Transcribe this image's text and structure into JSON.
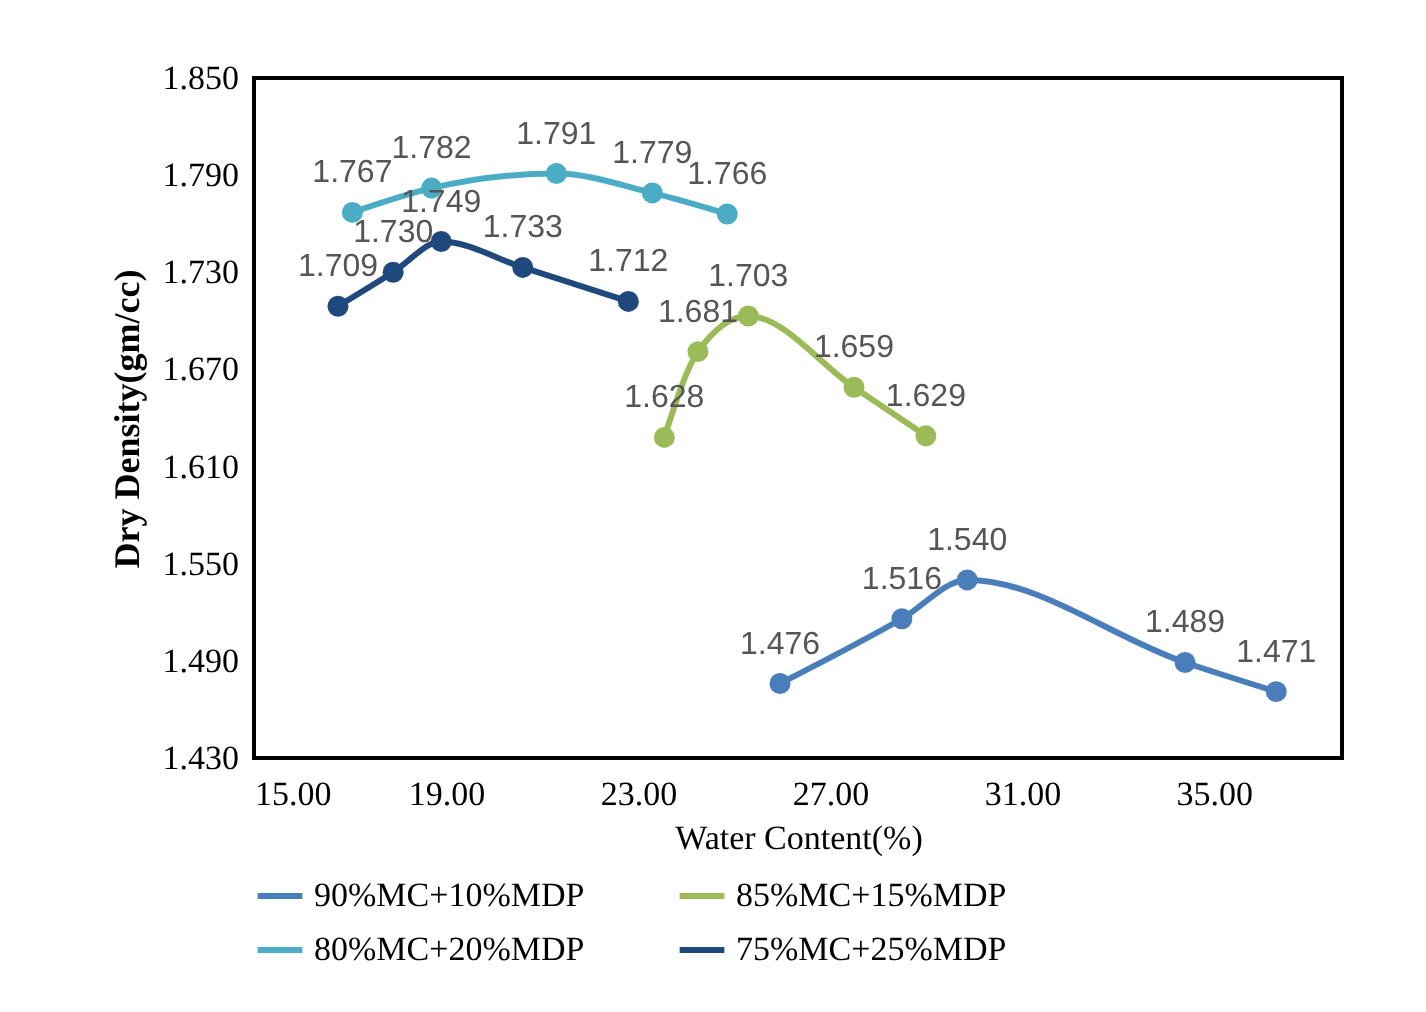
{
  "chart_data": {
    "type": "line",
    "xlabel": "Water Content(%)",
    "ylabel": "Dry Density(gm/cc)",
    "xlim": [
      15,
      37.67
    ],
    "xticks": [
      {
        "value": 15,
        "label": "15.00"
      },
      {
        "value": 19,
        "label": "19.00"
      },
      {
        "value": 23,
        "label": "23.00"
      },
      {
        "value": 27,
        "label": "27.00"
      },
      {
        "value": 31,
        "label": "31.00"
      },
      {
        "value": 35,
        "label": "35.00"
      }
    ],
    "ylim": [
      1.43,
      1.85
    ],
    "yticks": [
      {
        "value": 1.43,
        "label": "1.430"
      },
      {
        "value": 1.49,
        "label": "1.490"
      },
      {
        "value": 1.55,
        "label": "1.550"
      },
      {
        "value": 1.61,
        "label": "1.610"
      },
      {
        "value": 1.67,
        "label": "1.670"
      },
      {
        "value": 1.73,
        "label": "1.730"
      },
      {
        "value": 1.79,
        "label": "1.790"
      },
      {
        "value": 1.85,
        "label": "1.850"
      }
    ],
    "grid": false,
    "legend": "bottom",
    "marker": "circle",
    "line_style": "solid",
    "series": [
      {
        "name": "90%MC+10%MDP",
        "color": "#4a7ebb",
        "x": [
          25.96,
          28.5,
          29.86,
          34.4,
          36.3
        ],
        "values": [
          1.476,
          1.516,
          1.54,
          1.489,
          1.471
        ],
        "value_labels": [
          "1.476",
          "1.516",
          "1.540",
          "1.489",
          "1.471"
        ]
      },
      {
        "name": "85%MC+15%MDP",
        "color": "#9bbb59",
        "x": [
          23.55,
          24.25,
          25.3,
          27.5,
          29.0
        ],
        "values": [
          1.628,
          1.681,
          1.703,
          1.659,
          1.629
        ],
        "value_labels": [
          "1.628",
          "1.681",
          "1.703",
          "1.659",
          "1.629"
        ]
      },
      {
        "name": "80%MC+20%MDP",
        "color": "#4bacc6",
        "x": [
          17.05,
          18.7,
          21.3,
          23.3,
          24.86
        ],
        "values": [
          1.767,
          1.782,
          1.791,
          1.779,
          1.766
        ],
        "value_labels": [
          "1.767",
          "1.782",
          "1.791",
          "1.779",
          "1.766"
        ]
      },
      {
        "name": "75%MC+25%MDP",
        "color": "#1f497d",
        "x": [
          16.75,
          17.9,
          18.9,
          20.6,
          22.8
        ],
        "values": [
          1.709,
          1.73,
          1.749,
          1.733,
          1.712
        ],
        "value_labels": [
          "1.709",
          "1.730",
          "1.749",
          "1.733",
          "1.712"
        ]
      }
    ]
  }
}
